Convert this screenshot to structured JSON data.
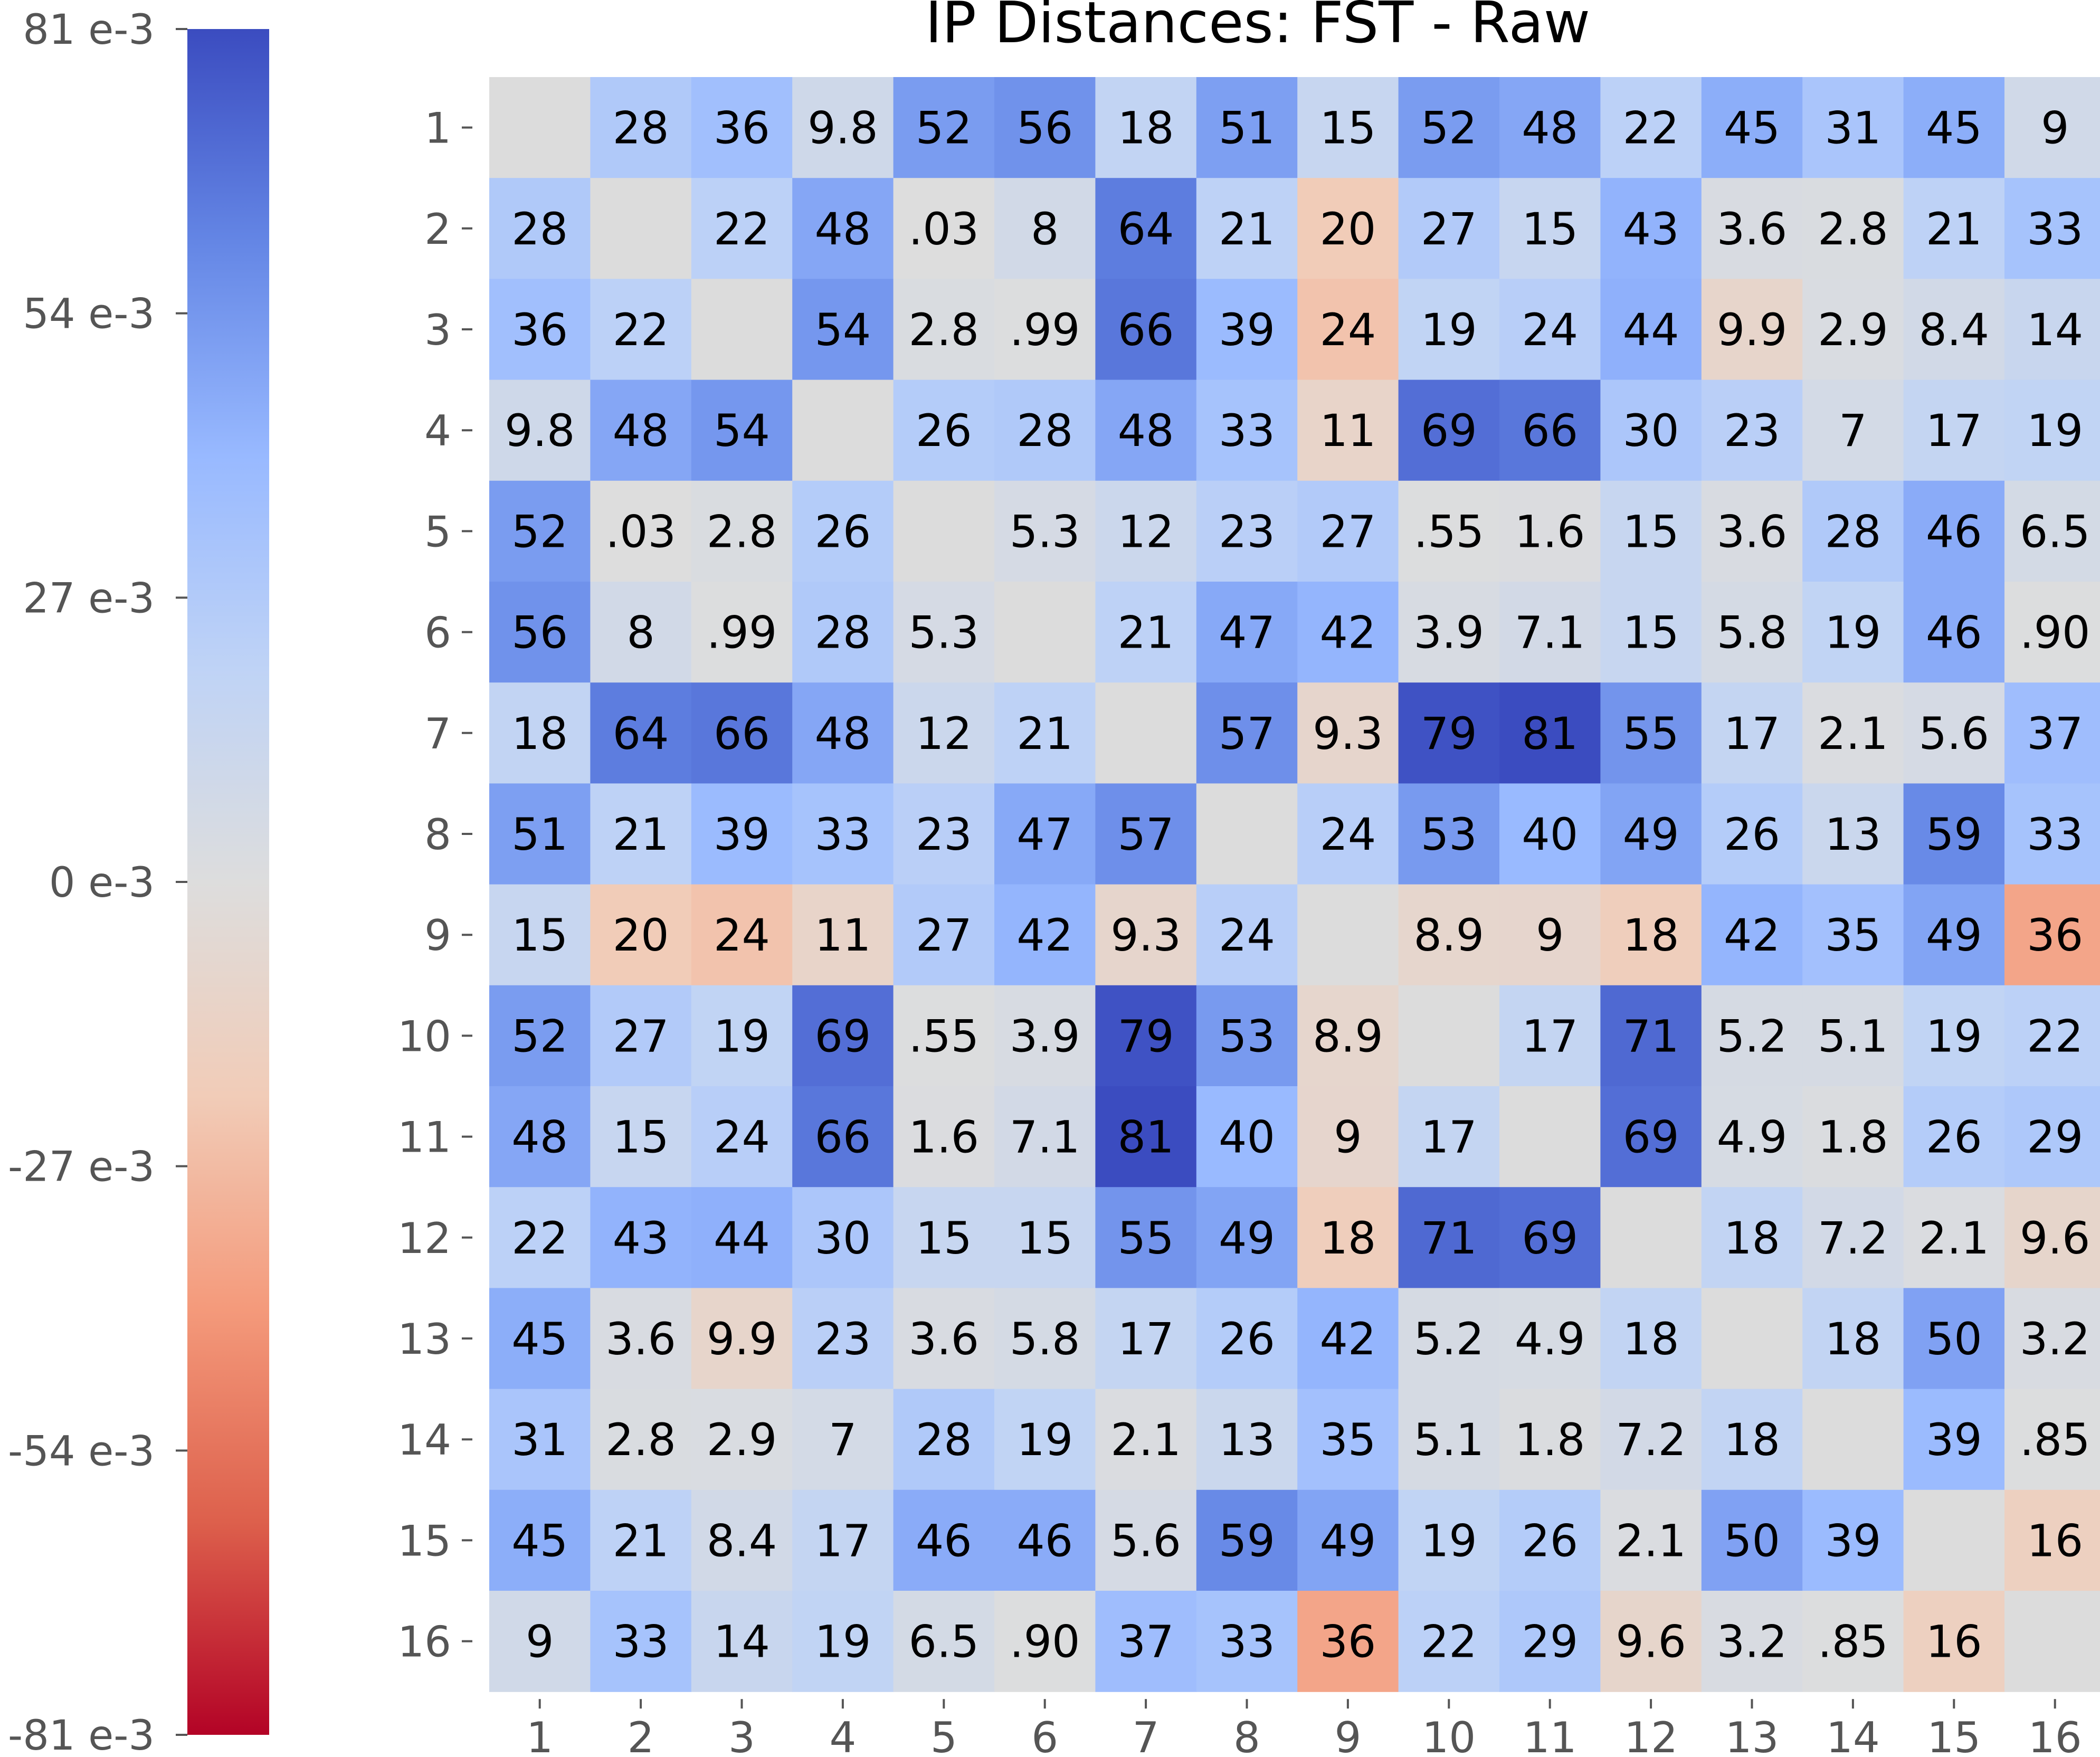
{
  "chart_data": {
    "type": "heatmap",
    "title": "IP Distances: FST - Raw",
    "x_categories": [
      "1",
      "2",
      "3",
      "4",
      "5",
      "6",
      "7",
      "8",
      "9",
      "10",
      "11",
      "12",
      "13",
      "14",
      "15",
      "16"
    ],
    "y_categories": [
      "1",
      "2",
      "3",
      "4",
      "5",
      "6",
      "7",
      "8",
      "9",
      "10",
      "11",
      "12",
      "13",
      "14",
      "15",
      "16"
    ],
    "values": [
      [
        null,
        28,
        36,
        9.8,
        52,
        56,
        18,
        51,
        15,
        52,
        48,
        22,
        45,
        31,
        45,
        9
      ],
      [
        28,
        null,
        22,
        48,
        0.03,
        8,
        64,
        21,
        -20,
        27,
        15,
        43,
        3.6,
        2.8,
        21,
        33
      ],
      [
        36,
        22,
        null,
        54,
        2.8,
        0.99,
        66,
        39,
        -24,
        19,
        24,
        44,
        -9.9,
        2.9,
        8.4,
        14
      ],
      [
        9.8,
        48,
        54,
        null,
        26,
        28,
        48,
        33,
        -11,
        69,
        66,
        30,
        23,
        7,
        17,
        19
      ],
      [
        52,
        0.03,
        2.8,
        26,
        null,
        5.3,
        12,
        23,
        27,
        0.55,
        1.6,
        15,
        3.6,
        28,
        46,
        6.5
      ],
      [
        56,
        8,
        0.99,
        28,
        5.3,
        null,
        21,
        47,
        42,
        3.9,
        7.1,
        15,
        5.8,
        19,
        46,
        0.9
      ],
      [
        18,
        64,
        66,
        48,
        12,
        21,
        null,
        57,
        -9.3,
        79,
        81,
        55,
        17,
        2.1,
        5.6,
        37
      ],
      [
        51,
        21,
        39,
        33,
        23,
        47,
        57,
        null,
        24,
        53,
        40,
        49,
        26,
        13,
        59,
        33
      ],
      [
        15,
        -20,
        -24,
        -11,
        27,
        42,
        -9.3,
        24,
        null,
        -8.9,
        -9,
        -18,
        42,
        35,
        49,
        -36
      ],
      [
        52,
        27,
        19,
        69,
        0.55,
        3.9,
        79,
        53,
        -8.9,
        null,
        17,
        71,
        5.2,
        5.1,
        19,
        22
      ],
      [
        48,
        15,
        24,
        66,
        1.6,
        7.1,
        81,
        40,
        -9,
        17,
        null,
        69,
        4.9,
        1.8,
        26,
        29
      ],
      [
        22,
        43,
        44,
        30,
        15,
        15,
        55,
        49,
        -18,
        71,
        69,
        null,
        18,
        7.2,
        2.1,
        -9.6
      ],
      [
        45,
        3.6,
        -9.9,
        23,
        3.6,
        5.8,
        17,
        26,
        42,
        5.2,
        4.9,
        18,
        null,
        18,
        50,
        3.2
      ],
      [
        31,
        2.8,
        2.9,
        7,
        28,
        19,
        2.1,
        13,
        35,
        5.1,
        1.8,
        7.2,
        18,
        null,
        39,
        0.85
      ],
      [
        45,
        21,
        8.4,
        17,
        46,
        46,
        5.6,
        59,
        49,
        19,
        26,
        2.1,
        50,
        39,
        null,
        -16
      ],
      [
        9,
        33,
        14,
        19,
        6.5,
        0.9,
        37,
        33,
        -36,
        22,
        29,
        -9.6,
        3.2,
        0.85,
        -16,
        null
      ]
    ],
    "cell_labels": [
      [
        "",
        "28",
        "36",
        "9.8",
        "52",
        "56",
        "18",
        "51",
        "15",
        "52",
        "48",
        "22",
        "45",
        "31",
        "45",
        "9"
      ],
      [
        "28",
        "",
        "22",
        "48",
        ".03",
        "8",
        "64",
        "21",
        "20",
        "27",
        "15",
        "43",
        "3.6",
        "2.8",
        "21",
        "33"
      ],
      [
        "36",
        "22",
        "",
        "54",
        "2.8",
        ".99",
        "66",
        "39",
        "24",
        "19",
        "24",
        "44",
        "9.9",
        "2.9",
        "8.4",
        "14"
      ],
      [
        "9.8",
        "48",
        "54",
        "",
        "26",
        "28",
        "48",
        "33",
        "11",
        "69",
        "66",
        "30",
        "23",
        "7",
        "17",
        "19"
      ],
      [
        "52",
        ".03",
        "2.8",
        "26",
        "",
        "5.3",
        "12",
        "23",
        "27",
        ".55",
        "1.6",
        "15",
        "3.6",
        "28",
        "46",
        "6.5"
      ],
      [
        "56",
        "8",
        ".99",
        "28",
        "5.3",
        "",
        "21",
        "47",
        "42",
        "3.9",
        "7.1",
        "15",
        "5.8",
        "19",
        "46",
        ".90"
      ],
      [
        "18",
        "64",
        "66",
        "48",
        "12",
        "21",
        "",
        "57",
        "9.3",
        "79",
        "81",
        "55",
        "17",
        "2.1",
        "5.6",
        "37"
      ],
      [
        "51",
        "21",
        "39",
        "33",
        "23",
        "47",
        "57",
        "",
        "24",
        "53",
        "40",
        "49",
        "26",
        "13",
        "59",
        "33"
      ],
      [
        "15",
        "20",
        "24",
        "11",
        "27",
        "42",
        "9.3",
        "24",
        "",
        "8.9",
        "9",
        "18",
        "42",
        "35",
        "49",
        "36"
      ],
      [
        "52",
        "27",
        "19",
        "69",
        ".55",
        "3.9",
        "79",
        "53",
        "8.9",
        "",
        "17",
        "71",
        "5.2",
        "5.1",
        "19",
        "22"
      ],
      [
        "48",
        "15",
        "24",
        "66",
        "1.6",
        "7.1",
        "81",
        "40",
        "9",
        "17",
        "",
        "69",
        "4.9",
        "1.8",
        "26",
        "29"
      ],
      [
        "22",
        "43",
        "44",
        "30",
        "15",
        "15",
        "55",
        "49",
        "18",
        "71",
        "69",
        "",
        "18",
        "7.2",
        "2.1",
        "9.6"
      ],
      [
        "45",
        "3.6",
        "9.9",
        "23",
        "3.6",
        "5.8",
        "17",
        "26",
        "42",
        "5.2",
        "4.9",
        "18",
        "",
        "18",
        "50",
        "3.2"
      ],
      [
        "31",
        "2.8",
        "2.9",
        "7",
        "28",
        "19",
        "2.1",
        "13",
        "35",
        "5.1",
        "1.8",
        "7.2",
        "18",
        "",
        "39",
        ".85"
      ],
      [
        "45",
        "21",
        "8.4",
        "17",
        "46",
        "46",
        "5.6",
        "59",
        "49",
        "19",
        "26",
        "2.1",
        "50",
        "39",
        "",
        "16"
      ],
      [
        "9",
        "33",
        "14",
        "19",
        "6.5",
        ".90",
        "37",
        "33",
        "36",
        "22",
        "29",
        "9.6",
        "3.2",
        ".85",
        "16",
        ""
      ]
    ],
    "diagonal_color": "#dcdcdc",
    "colorbar": {
      "colormap": "coolwarm_r",
      "range": [
        -81,
        81
      ],
      "tick_values": [
        81,
        54,
        27,
        0,
        -27,
        -54,
        -81
      ],
      "tick_labels": [
        "81 e-3",
        "54 e-3",
        "27 e-3",
        "0 e-3",
        "-27 e-3",
        "-54 e-3",
        "-81 e-3"
      ]
    },
    "colors": {
      "tick_label": "#555555",
      "cell_text": "#000000",
      "title": "#000000"
    },
    "grid": false
  }
}
